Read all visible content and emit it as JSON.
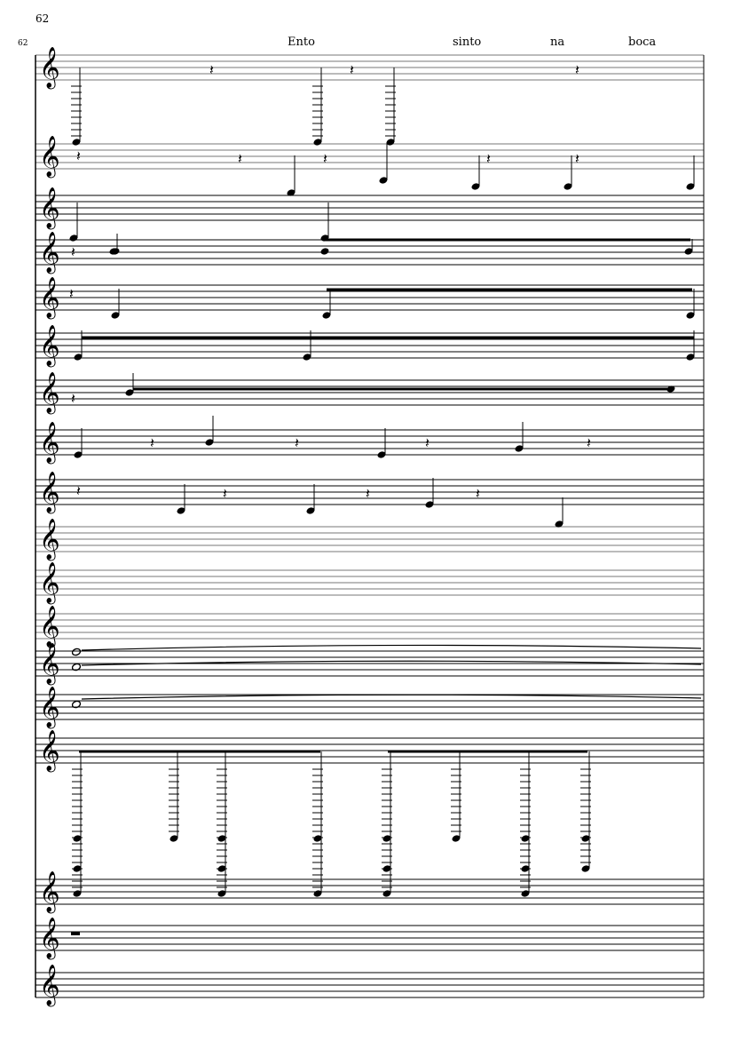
{
  "score": {
    "measure_number": "62",
    "measure_number_small": "62",
    "lyrics": [
      "Ento",
      "sinto",
      "na",
      "boca"
    ],
    "staff_count": 18,
    "clef": "treble-clef-icon",
    "ink_color": "#000000",
    "staff_line_color": "#777777"
  }
}
